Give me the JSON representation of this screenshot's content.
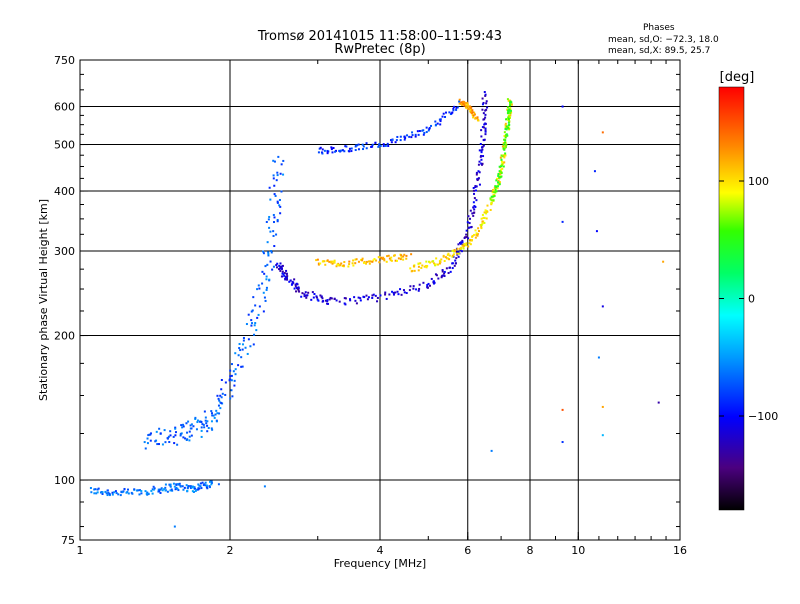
{
  "header": {
    "title_line1": "Tromsø 20141015 11:58:00–11:59:43",
    "title_line2": "RwPretec (8p)"
  },
  "stats": {
    "heading": "Phases",
    "line_o": "mean, sd,O: −72.3, 18.0",
    "line_x": "mean, sd,X:  89.5, 25.7"
  },
  "colorbar": {
    "label": "[deg]",
    "min": -180,
    "max": 180,
    "ticks": [
      {
        "value": 100,
        "label": "100"
      },
      {
        "value": 0,
        "label": "0"
      },
      {
        "value": -100,
        "label": "−100"
      }
    ]
  },
  "chart_data": {
    "type": "scatter",
    "title": "Tromsø 20141015 11:58:00–11:59:43",
    "subtitle": "RwPretec (8p)",
    "xlabel": "Frequency [MHz]",
    "ylabel": "Stationary phase Virtual Height [km]",
    "x_scale": "log",
    "y_scale": "log",
    "xlim": [
      1,
      16
    ],
    "ylim": [
      75,
      750
    ],
    "x_ticks": [
      {
        "value": 1,
        "label": "1"
      },
      {
        "value": 2,
        "label": "2"
      },
      {
        "value": 4,
        "label": "4"
      },
      {
        "value": 6,
        "label": "6"
      },
      {
        "value": 8,
        "label": "8"
      },
      {
        "value": 10,
        "label": "10"
      },
      {
        "value": 16,
        "label": "16"
      }
    ],
    "y_ticks": [
      {
        "value": 75,
        "label": "75"
      },
      {
        "value": 100,
        "label": "100"
      },
      {
        "value": 200,
        "label": "200"
      },
      {
        "value": 300,
        "label": "300"
      },
      {
        "value": 400,
        "label": "400"
      },
      {
        "value": 500,
        "label": "500"
      },
      {
        "value": 600,
        "label": "600"
      },
      {
        "value": 750,
        "label": "750"
      }
    ],
    "grid_x": [
      2,
      4,
      6,
      8,
      10
    ],
    "grid_y": [
      100,
      200,
      300,
      400,
      500,
      600
    ],
    "traces": [
      {
        "points": [
          [
            1.05,
            95
          ],
          [
            1.2,
            94
          ],
          [
            1.4,
            95
          ],
          [
            1.55,
            97
          ],
          [
            1.7,
            96
          ],
          [
            1.85,
            99
          ]
        ],
        "phase": -65,
        "spread": 0.012
      },
      {
        "points": [
          [
            1.35,
            120
          ],
          [
            1.55,
            124
          ],
          [
            1.7,
            128
          ],
          [
            1.85,
            135
          ],
          [
            2.0,
            160
          ],
          [
            2.2,
            200
          ],
          [
            2.35,
            260
          ],
          [
            2.45,
            350
          ],
          [
            2.5,
            470
          ]
        ],
        "phase": -70,
        "spread": 0.03
      },
      {
        "points": [
          [
            2.5,
            280
          ],
          [
            2.6,
            265
          ],
          [
            2.8,
            245
          ],
          [
            3.2,
            235
          ],
          [
            4.0,
            240
          ],
          [
            5.0,
            255
          ],
          [
            5.6,
            280
          ],
          [
            6.0,
            330
          ],
          [
            6.3,
            420
          ],
          [
            6.45,
            520
          ],
          [
            6.5,
            640
          ]
        ],
        "phase": -115,
        "spread": 0.012
      },
      {
        "points": [
          [
            3.0,
            285
          ],
          [
            3.4,
            282
          ],
          [
            4.0,
            288
          ],
          [
            4.6,
            292
          ]
        ],
        "phase": 110,
        "spread": 0.01
      },
      {
        "points": [
          [
            4.6,
            275
          ],
          [
            5.2,
            285
          ],
          [
            5.8,
            300
          ],
          [
            6.3,
            330
          ],
          [
            6.7,
            380
          ],
          [
            7.0,
            440
          ],
          [
            7.2,
            540
          ],
          [
            7.3,
            620
          ]
        ],
        "phase": 100,
        "spread": 0.01
      },
      {
        "points": [
          [
            6.7,
            380
          ],
          [
            7.0,
            440
          ],
          [
            7.2,
            540
          ],
          [
            7.3,
            620
          ]
        ],
        "phase": 55,
        "spread": 0.01
      },
      {
        "points": [
          [
            3.0,
            485
          ],
          [
            3.5,
            490
          ],
          [
            4.2,
            505
          ],
          [
            5.0,
            535
          ],
          [
            5.8,
            610
          ]
        ],
        "phase": -88,
        "spread": 0.01
      },
      {
        "points": [
          [
            5.8,
            615
          ],
          [
            6.0,
            600
          ],
          [
            6.3,
            560
          ]
        ],
        "phase": 120,
        "spread": 0.008
      }
    ],
    "isolated_points": [
      {
        "x": 9.3,
        "y": 600,
        "phase": -100
      },
      {
        "x": 9.3,
        "y": 345,
        "phase": -90
      },
      {
        "x": 9.3,
        "y": 140,
        "phase": 150
      },
      {
        "x": 9.3,
        "y": 120,
        "phase": -85
      },
      {
        "x": 11.2,
        "y": 530,
        "phase": 140
      },
      {
        "x": 10.8,
        "y": 440,
        "phase": -90
      },
      {
        "x": 10.9,
        "y": 330,
        "phase": -100
      },
      {
        "x": 11.2,
        "y": 230,
        "phase": -110
      },
      {
        "x": 11.0,
        "y": 180,
        "phase": -60
      },
      {
        "x": 11.2,
        "y": 142,
        "phase": 120
      },
      {
        "x": 11.2,
        "y": 124,
        "phase": -40
      },
      {
        "x": 14.5,
        "y": 145,
        "phase": -130
      },
      {
        "x": 6.7,
        "y": 115,
        "phase": -60
      },
      {
        "x": 1.55,
        "y": 80,
        "phase": -60
      },
      {
        "x": 1.9,
        "y": 98,
        "phase": -70
      },
      {
        "x": 2.35,
        "y": 97,
        "phase": -60
      },
      {
        "x": 14.8,
        "y": 285,
        "phase": 120
      }
    ]
  }
}
